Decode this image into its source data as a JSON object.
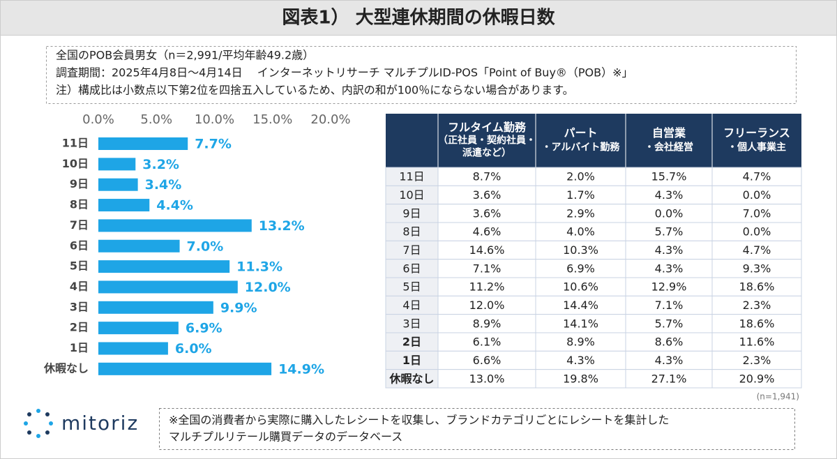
{
  "title": "図表1） 大型連休期間の休暇日数",
  "notes": [
    "全国のPOB会員男女（n＝2,991/平均年齢49.2歳）",
    "調査期間：2025年4月8日～4月14日　 インターネットリサーチ マルチプルID-POS「Point of Buy®（POB）※」",
    "注）構成比は小数点以下第2位を四捨五入しているため、内訳の和が100％にならない場合があります。"
  ],
  "chart_data": {
    "type": "bar",
    "orientation": "horizontal",
    "categories": [
      "11日",
      "10日",
      "9日",
      "8日",
      "7日",
      "6日",
      "5日",
      "4日",
      "3日",
      "2日",
      "1日",
      "休暇なし"
    ],
    "values": [
      7.7,
      3.2,
      3.4,
      4.4,
      13.2,
      7.0,
      11.3,
      12.0,
      9.9,
      6.9,
      6.0,
      14.9
    ],
    "value_labels": [
      "7.7%",
      "3.2%",
      "3.4%",
      "4.4%",
      "13.2%",
      "7.0%",
      "11.3%",
      "12.0%",
      "9.9%",
      "6.9%",
      "6.0%",
      "14.9%"
    ],
    "color": "#1ea5e6",
    "xlim": [
      0,
      20
    ],
    "xticks": [
      {
        "value": 0,
        "label": "0.0%"
      },
      {
        "value": 5,
        "label": "5.0%"
      },
      {
        "value": 10,
        "label": "10.0%"
      },
      {
        "value": 15,
        "label": "15.0%"
      },
      {
        "value": 20,
        "label": "20.0%"
      }
    ],
    "grid": false
  },
  "table": {
    "header": [
      [
        "フルタイム勤務",
        "（正社員・契約社員・",
        "派遣など）"
      ],
      [
        "パート",
        "・アルバイト勤務"
      ],
      [
        "自営業",
        "・会社経営"
      ],
      [
        "フリーランス",
        "・個人事業主"
      ]
    ],
    "rows": [
      [
        "11日",
        "8.7%",
        "2.0%",
        "15.7%",
        "4.7%"
      ],
      [
        "10日",
        "3.6%",
        "1.7%",
        "4.3%",
        "0.0%"
      ],
      [
        "9日",
        "3.6%",
        "2.9%",
        "0.0%",
        "7.0%"
      ],
      [
        "8日",
        "4.6%",
        "4.0%",
        "5.7%",
        "0.0%"
      ],
      [
        "7日",
        "14.6%",
        "10.3%",
        "4.3%",
        "4.7%"
      ],
      [
        "6日",
        "7.1%",
        "6.9%",
        "4.3%",
        "9.3%"
      ],
      [
        "5日",
        "11.2%",
        "10.6%",
        "12.9%",
        "18.6%"
      ],
      [
        "4日",
        "12.0%",
        "14.4%",
        "7.1%",
        "2.3%"
      ],
      [
        "3日",
        "8.9%",
        "14.1%",
        "5.7%",
        "18.6%"
      ],
      [
        "2日",
        "6.1%",
        "8.9%",
        "8.6%",
        "11.6%"
      ],
      [
        "1日",
        "6.6%",
        "4.3%",
        "4.3%",
        "2.3%"
      ],
      [
        "休暇なし",
        "13.0%",
        "19.8%",
        "27.1%",
        "20.9%"
      ]
    ],
    "sample": "(n=1,941)"
  },
  "logo": "mitoriz",
  "footer": [
    "※全国の消費者から実際に購入したレシートを収集し、ブランドカテゴリごとにレシートを集計した",
    "マルチプルリテール購買データのデータベース"
  ]
}
